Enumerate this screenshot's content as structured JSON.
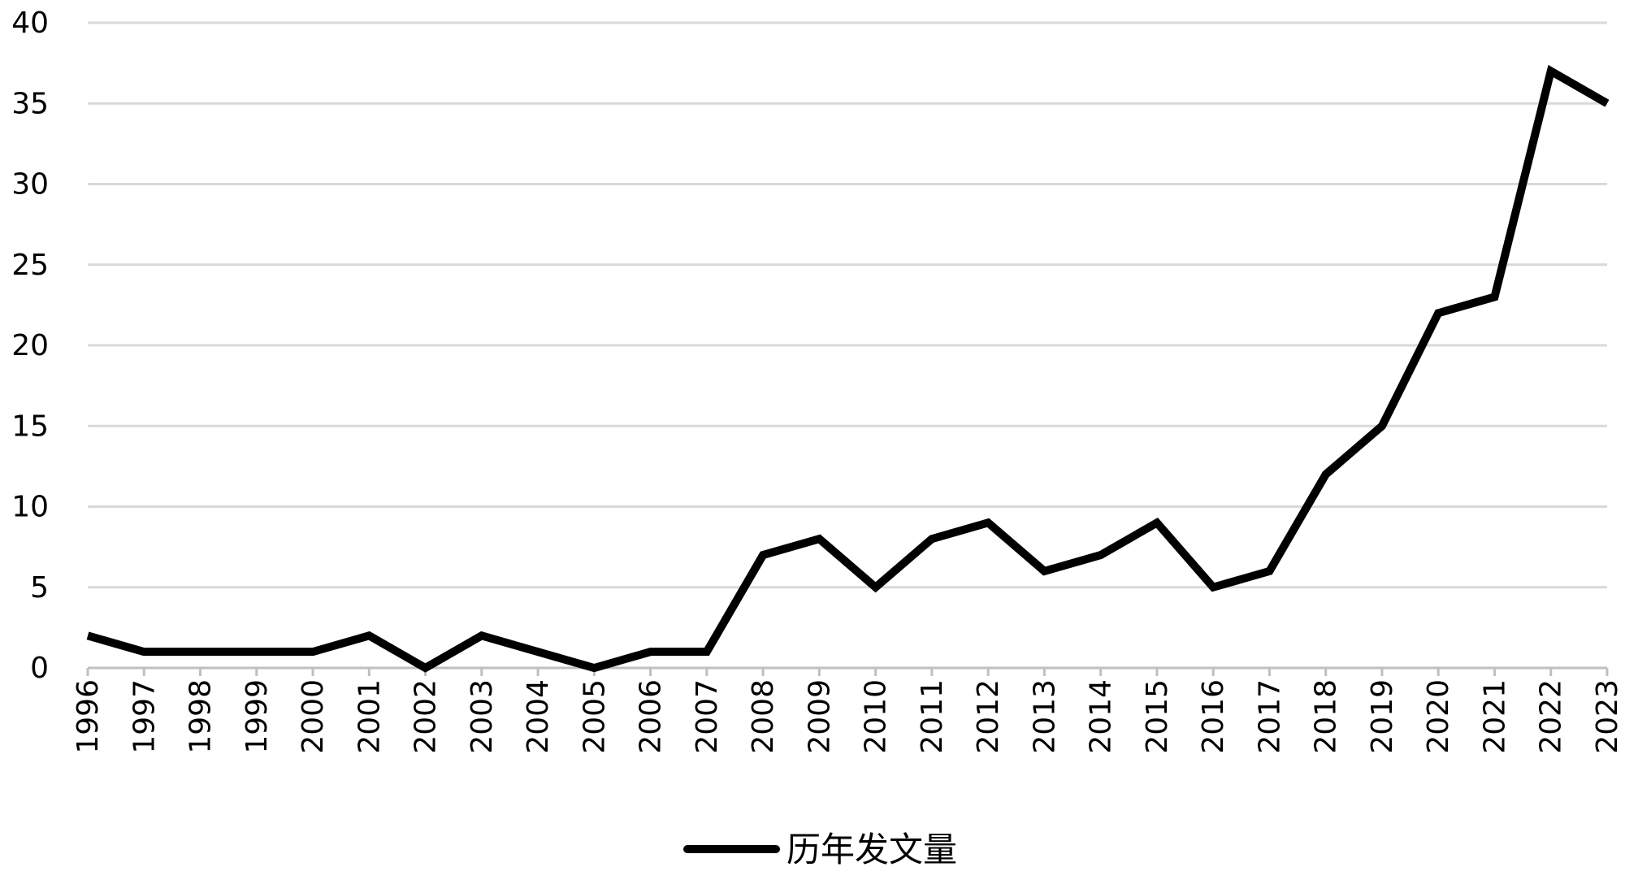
{
  "chart_data": {
    "type": "line",
    "x": [
      1996,
      1997,
      1998,
      1999,
      2000,
      2001,
      2002,
      2003,
      2004,
      2005,
      2006,
      2007,
      2008,
      2009,
      2010,
      2011,
      2012,
      2013,
      2014,
      2015,
      2016,
      2017,
      2018,
      2019,
      2020,
      2021,
      2022,
      2023
    ],
    "series": [
      {
        "name": "历年发文量",
        "color": "#000000",
        "values": [
          2,
          1,
          1,
          1,
          1,
          2,
          0,
          2,
          1,
          0,
          1,
          1,
          7,
          8,
          5,
          8,
          9,
          6,
          7,
          9,
          5,
          6,
          12,
          15,
          22,
          23,
          37,
          35
        ]
      }
    ],
    "xlim": [
      1996,
      2023
    ],
    "xticks": [
      1996,
      1997,
      1998,
      1999,
      2000,
      2001,
      2002,
      2003,
      2004,
      2005,
      2006,
      2007,
      2008,
      2009,
      2010,
      2011,
      2012,
      2013,
      2014,
      2015,
      2016,
      2017,
      2018,
      2019,
      2020,
      2021,
      2022,
      2023
    ],
    "ylim": [
      0,
      40
    ],
    "yticks": [
      0,
      5,
      10,
      15,
      20,
      25,
      30,
      35,
      40
    ],
    "grid": true,
    "legend": "bottom"
  }
}
